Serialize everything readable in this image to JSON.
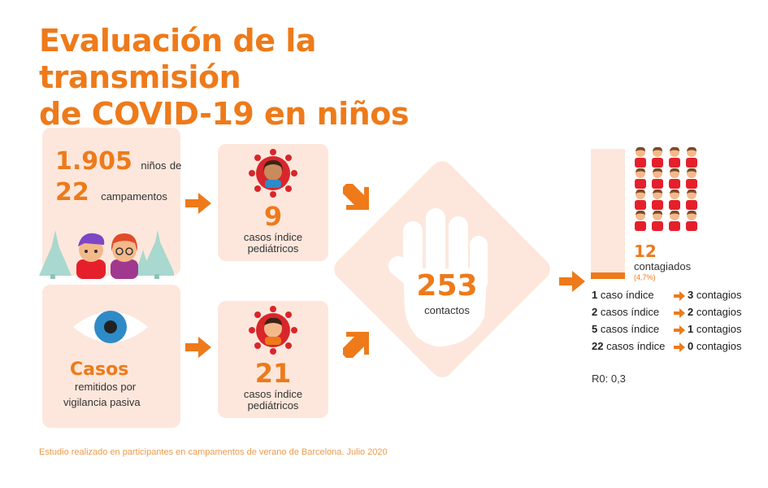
{
  "title_line1": "Evaluación de la transmisión",
  "title_line2": "de COVID-19 en niños",
  "camps": {
    "children_count": "1.905",
    "children_label": "niños",
    "de": "de",
    "camps_count": "22",
    "camps_label": "campamentos"
  },
  "passive": {
    "title": "Casos",
    "line1": "remitidos por",
    "line2": "vigilancia pasiva"
  },
  "index_cases_top": {
    "count": "9",
    "line1": "casos índice",
    "line2": "pediátricos"
  },
  "index_cases_bottom": {
    "count": "21",
    "line1": "casos índice",
    "line2": "pediátricos"
  },
  "contacts": {
    "count": "253",
    "label": "contactos"
  },
  "infected": {
    "count": "12",
    "label": "contagiados",
    "percent": "(4,7%)",
    "people_count": 16,
    "bar_fraction": 0.047
  },
  "breakdown": [
    {
      "num": "1",
      "cases": "caso índice",
      "infections_num": "3",
      "infections": "contagios"
    },
    {
      "num": "2",
      "cases": "casos índice",
      "infections_num": "2",
      "infections": "contagios"
    },
    {
      "num": "5",
      "cases": "casos índice",
      "infections_num": "1",
      "infections": "contagios"
    },
    {
      "num": "22",
      "cases": "casos índice",
      "infections_num": "0",
      "infections": "contagios"
    }
  ],
  "r0": "R0: 0,3",
  "footer": "Estudio realizado en participantes en campamentos de verano de Barcelona. Julio 2020",
  "colors": {
    "accent": "#ee7a1a",
    "panel": "#fde7dc",
    "virus": "#d8262b",
    "tree": "#a8d8cf",
    "eye_iris": "#2e8bc8"
  }
}
